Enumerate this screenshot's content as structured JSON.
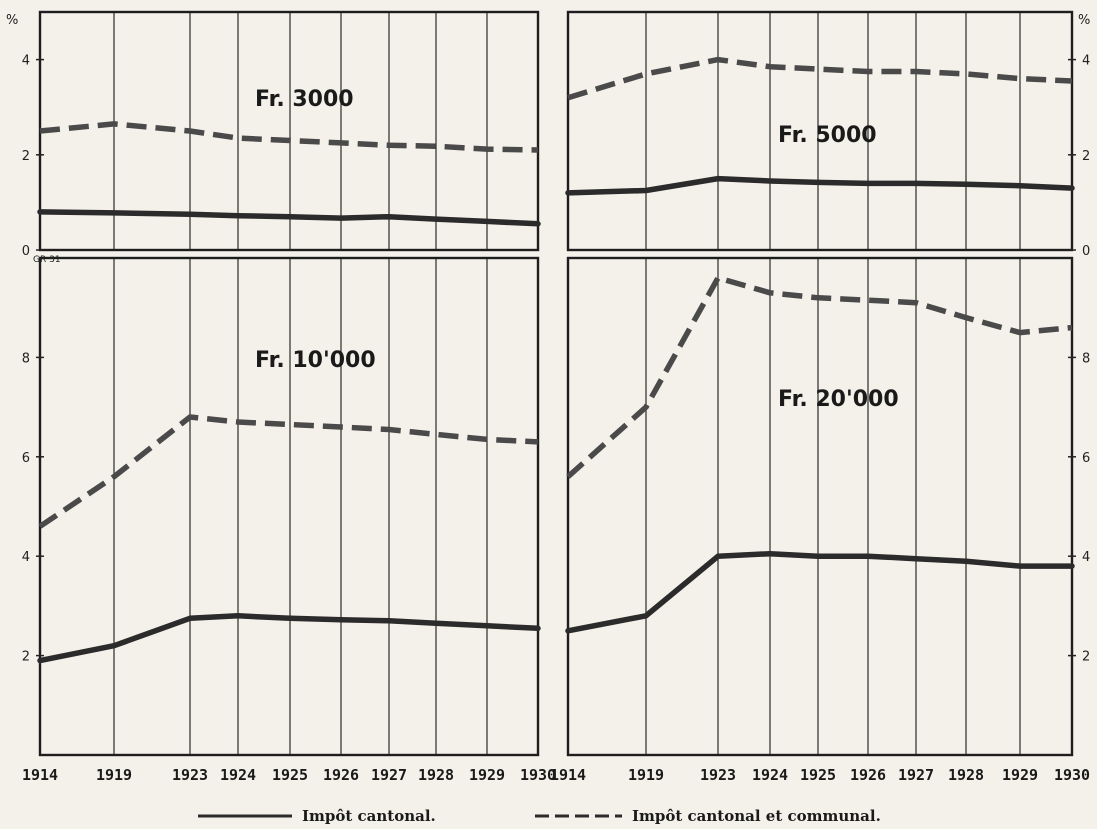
{
  "chart_data": [
    {
      "type": "line",
      "title": "Fr. 3000",
      "y_unit": "%",
      "ylim": [
        0,
        5
      ],
      "yticks": [
        "0",
        "2",
        "4"
      ],
      "x": [
        1914,
        1919,
        1923,
        1924,
        1925,
        1926,
        1927,
        1928,
        1929,
        1930
      ],
      "series": [
        {
          "name": "Impôt cantonal.",
          "style": "solid",
          "values": [
            0.8,
            0.78,
            0.75,
            0.72,
            0.7,
            0.67,
            0.7,
            0.65,
            0.6,
            0.55
          ]
        },
        {
          "name": "Impôt cantonal et communal.",
          "style": "dashed",
          "values": [
            2.5,
            2.65,
            2.5,
            2.35,
            2.3,
            2.25,
            2.2,
            2.18,
            2.12,
            2.1
          ]
        }
      ],
      "grid": true
    },
    {
      "type": "line",
      "title": "Fr. 5000",
      "y_unit": "%",
      "ylim": [
        0,
        5
      ],
      "yticks": [
        "0",
        "2",
        "4"
      ],
      "x": [
        1914,
        1919,
        1923,
        1924,
        1925,
        1926,
        1927,
        1928,
        1929,
        1930
      ],
      "series": [
        {
          "name": "Impôt cantonal.",
          "style": "solid",
          "values": [
            1.2,
            1.25,
            1.5,
            1.45,
            1.42,
            1.4,
            1.4,
            1.38,
            1.35,
            1.3
          ]
        },
        {
          "name": "Impôt cantonal et communal.",
          "style": "dashed",
          "values": [
            3.2,
            3.7,
            4.0,
            3.85,
            3.8,
            3.75,
            3.75,
            3.7,
            3.6,
            3.55
          ]
        }
      ],
      "grid": true
    },
    {
      "type": "line",
      "title": "Fr. 10'000",
      "y_unit": "",
      "ylim": [
        0,
        10
      ],
      "yticks": [
        "2",
        "4",
        "6",
        "8"
      ],
      "x": [
        1914,
        1919,
        1923,
        1924,
        1925,
        1926,
        1927,
        1928,
        1929,
        1930
      ],
      "series": [
        {
          "name": "Impôt cantonal.",
          "style": "solid",
          "values": [
            1.9,
            2.2,
            2.75,
            2.8,
            2.75,
            2.72,
            2.7,
            2.65,
            2.6,
            2.55
          ]
        },
        {
          "name": "Impôt cantonal et communal.",
          "style": "dashed",
          "values": [
            4.6,
            5.6,
            6.8,
            6.7,
            6.65,
            6.6,
            6.55,
            6.45,
            6.35,
            6.3
          ]
        }
      ],
      "grid": true
    },
    {
      "type": "line",
      "title": "Fr. 20'000",
      "y_unit": "",
      "ylim": [
        0,
        10
      ],
      "yticks": [
        "2",
        "4",
        "6",
        "8"
      ],
      "x": [
        1914,
        1919,
        1923,
        1924,
        1925,
        1926,
        1927,
        1928,
        1929,
        1930
      ],
      "series": [
        {
          "name": "Impôt cantonal.",
          "style": "solid",
          "values": [
            2.5,
            2.8,
            4.0,
            4.05,
            4.0,
            4.0,
            3.95,
            3.9,
            3.8,
            3.8
          ]
        },
        {
          "name": "Impôt cantonal et communal.",
          "style": "dashed",
          "values": [
            5.6,
            7.0,
            9.6,
            9.3,
            9.2,
            9.15,
            9.1,
            8.8,
            8.5,
            8.6
          ]
        }
      ],
      "grid": true
    }
  ],
  "x_tick_labels": [
    "1914",
    "1919",
    "1923",
    "1924",
    "1925",
    "1926",
    "1927",
    "1928",
    "1929",
    "1930"
  ],
  "corner_code": "GR 31",
  "legend": {
    "position": "bottom-center",
    "items": [
      {
        "label": "Impôt cantonal.",
        "style": "solid"
      },
      {
        "label": "Impôt cantonal et communal.",
        "style": "dashed"
      }
    ]
  },
  "colors": {
    "ink": "#2b2b2b",
    "dash": "#4a4a4a",
    "paper": "#f4f1ea"
  }
}
